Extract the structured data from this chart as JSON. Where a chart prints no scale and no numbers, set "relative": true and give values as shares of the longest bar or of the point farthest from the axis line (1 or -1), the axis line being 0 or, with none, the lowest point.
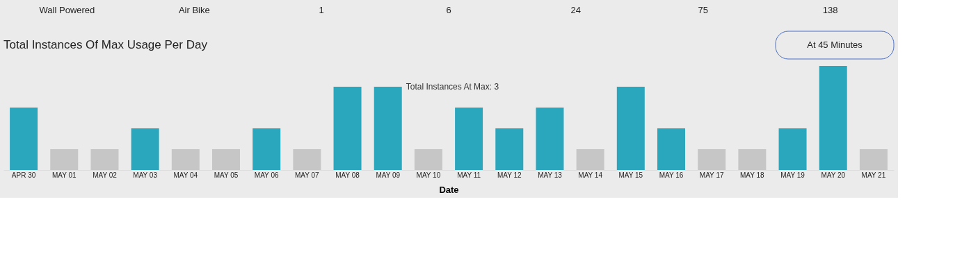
{
  "chart_data": {
    "type": "bar",
    "title": "Total Instances Of Max Usage Per Day",
    "xlabel": "Date",
    "categories": [
      "APR 30",
      "MAY 01",
      "MAY 02",
      "MAY 03",
      "MAY 04",
      "MAY 05",
      "MAY 06",
      "MAY 07",
      "MAY 08",
      "MAY 09",
      "MAY 10",
      "MAY 11",
      "MAY 12",
      "MAY 13",
      "MAY 14",
      "MAY 15",
      "MAY 16",
      "MAY 17",
      "MAY 18",
      "MAY 19",
      "MAY 20",
      "MAY 21"
    ],
    "values": [
      0.6,
      0.2,
      0.2,
      0.4,
      0.2,
      0.2,
      0.4,
      0.2,
      0.8,
      0.8,
      0.2,
      0.6,
      0.4,
      0.6,
      0.2,
      0.8,
      0.4,
      0.2,
      0.2,
      0.4,
      1,
      0.2
    ],
    "colors": [
      "#2aa7bd",
      "#c6c6c6",
      "#c6c6c6",
      "#2aa7bd",
      "#c6c6c6",
      "#c6c6c6",
      "#2aa7bd",
      "#c6c6c6",
      "#2aa7bd",
      "#2aa7bd",
      "#c6c6c6",
      "#2aa7bd",
      "#2aa7bd",
      "#2aa7bd",
      "#c6c6c6",
      "#2aa7bd",
      "#2aa7bd",
      "#c6c6c6",
      "#c6c6c6",
      "#2aa7bd",
      "#2aa7bd",
      "#c6c6c6"
    ],
    "relative": true,
    "annotations": [
      "Wall Powered",
      "Air Bike",
      "1",
      "6",
      "24",
      "75",
      "138",
      {
        "text": "Total Instances At Max: 3",
        "x": "MAY 09",
        "y": 0.8
      },
      "At 45 Minutes"
    ]
  }
}
